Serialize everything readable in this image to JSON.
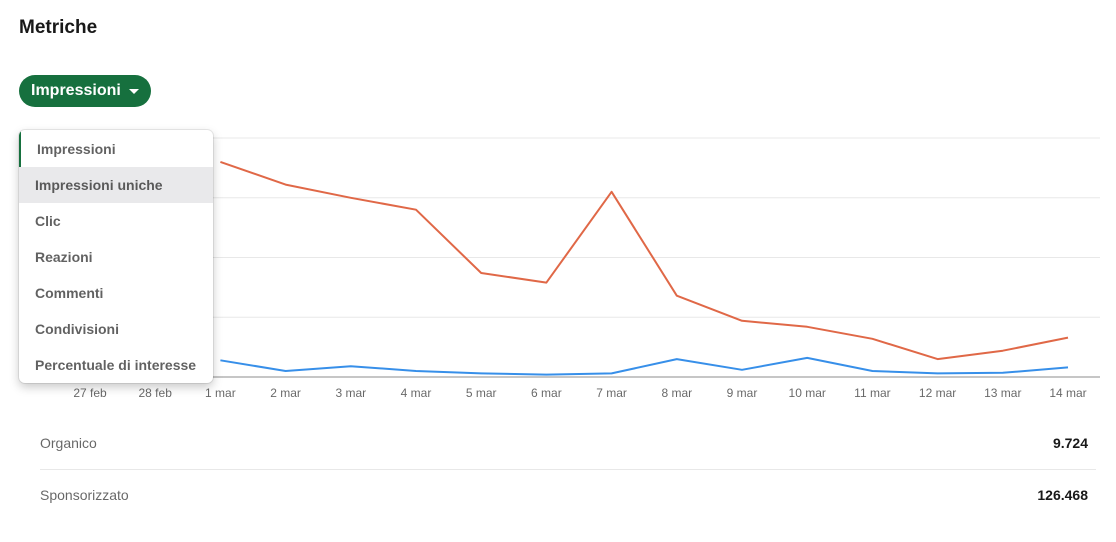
{
  "page": {
    "title": "Metriche"
  },
  "metric_selector": {
    "label": "Impressioni",
    "icon": "caret-down-icon"
  },
  "dropdown": {
    "items": [
      {
        "label": "Impressioni",
        "selected": true
      },
      {
        "label": "Impressioni uniche",
        "hovered": true
      },
      {
        "label": "Clic"
      },
      {
        "label": "Reazioni"
      },
      {
        "label": "Commenti"
      },
      {
        "label": "Condivisioni"
      },
      {
        "label": "Percentuale di interesse"
      }
    ]
  },
  "chart_data": {
    "type": "line",
    "categories": [
      "27 feb",
      "28 feb",
      "1 mar",
      "2 mar",
      "3 mar",
      "4 mar",
      "5 mar",
      "6 mar",
      "7 mar",
      "8 mar",
      "9 mar",
      "10 mar",
      "11 mar",
      "12 mar",
      "13 mar",
      "14 mar"
    ],
    "series": [
      {
        "color": "#e06847",
        "values": [
          null,
          null,
          18000,
          16100,
          15000,
          14000,
          8700,
          7900,
          15500,
          6800,
          4700,
          4200,
          3200,
          1500,
          2200,
          3300
        ]
      },
      {
        "color": "#378fe9",
        "values": [
          null,
          null,
          1400,
          500,
          900,
          500,
          300,
          200,
          300,
          1500,
          600,
          1600,
          500,
          300,
          350,
          800
        ]
      }
    ],
    "ylim": [
      0,
      20000
    ],
    "grid": true,
    "legend": "none"
  },
  "summary": [
    {
      "label": "Organico",
      "value": "9.724"
    },
    {
      "label": "Sponsorizzato",
      "value": "126.468"
    }
  ]
}
